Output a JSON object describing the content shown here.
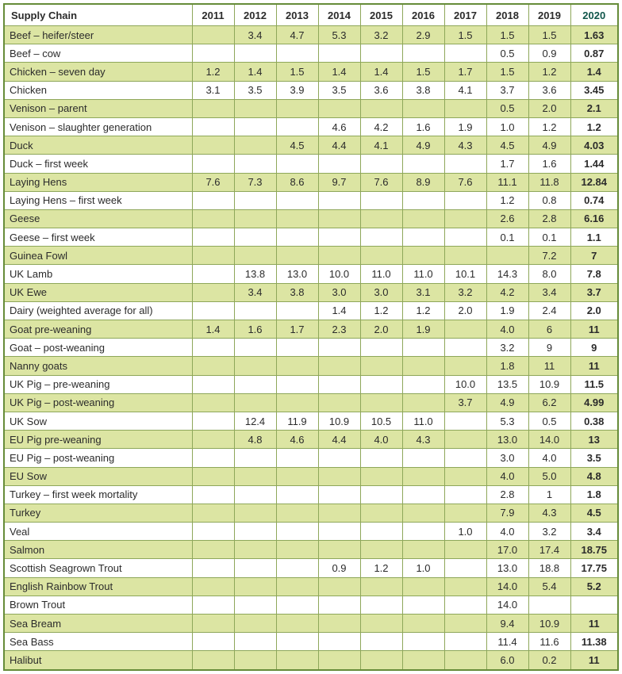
{
  "colors": {
    "header_green": "#54802a",
    "row_band_green": "#dce5a3",
    "grid_green": "#8ea75a",
    "outer_border_green": "#668c39",
    "final_column_teal": "#11564b"
  },
  "table": {
    "header_label": "Supply Chain",
    "years": [
      "2011",
      "2012",
      "2013",
      "2014",
      "2015",
      "2016",
      "2017",
      "2018",
      "2019",
      "2020"
    ],
    "rows": [
      {
        "label": "Beef – heifer/steer",
        "values": [
          "",
          "3.4",
          "4.7",
          "5.3",
          "3.2",
          "2.9",
          "1.5",
          "1.5",
          "1.5",
          "1.63"
        ]
      },
      {
        "label": "Beef – cow",
        "values": [
          "",
          "",
          "",
          "",
          "",
          "",
          "",
          "0.5",
          "0.9",
          "0.87"
        ]
      },
      {
        "label": "Chicken – seven day",
        "values": [
          "1.2",
          "1.4",
          "1.5",
          "1.4",
          "1.4",
          "1.5",
          "1.7",
          "1.5",
          "1.2",
          "1.4"
        ]
      },
      {
        "label": "Chicken",
        "values": [
          "3.1",
          "3.5",
          "3.9",
          "3.5",
          "3.6",
          "3.8",
          "4.1",
          "3.7",
          "3.6",
          "3.45"
        ]
      },
      {
        "label": "Venison – parent",
        "values": [
          "",
          "",
          "",
          "",
          "",
          "",
          "",
          "0.5",
          "2.0",
          "2.1"
        ]
      },
      {
        "label": "Venison – slaughter generation",
        "values": [
          "",
          "",
          "",
          "4.6",
          "4.2",
          "1.6",
          "1.9",
          "1.0",
          "1.2",
          "1.2"
        ]
      },
      {
        "label": "Duck",
        "values": [
          "",
          "",
          "4.5",
          "4.4",
          "4.1",
          "4.9",
          "4.3",
          "4.5",
          "4.9",
          "4.03"
        ]
      },
      {
        "label": "Duck – first week",
        "values": [
          "",
          "",
          "",
          "",
          "",
          "",
          "",
          "1.7",
          "1.6",
          "1.44"
        ]
      },
      {
        "label": "Laying Hens",
        "values": [
          "7.6",
          "7.3",
          "8.6",
          "9.7",
          "7.6",
          "8.9",
          "7.6",
          "11.1",
          "11.8",
          "12.84"
        ]
      },
      {
        "label": "Laying Hens – first week",
        "values": [
          "",
          "",
          "",
          "",
          "",
          "",
          "",
          "1.2",
          "0.8",
          "0.74"
        ]
      },
      {
        "label": "Geese",
        "values": [
          "",
          "",
          "",
          "",
          "",
          "",
          "",
          "2.6",
          "2.8",
          "6.16"
        ]
      },
      {
        "label": "Geese – first week",
        "values": [
          "",
          "",
          "",
          "",
          "",
          "",
          "",
          "0.1",
          "0.1",
          "1.1"
        ]
      },
      {
        "label": "Guinea Fowl",
        "values": [
          "",
          "",
          "",
          "",
          "",
          "",
          "",
          "",
          "7.2",
          "7"
        ]
      },
      {
        "label": "UK Lamb",
        "values": [
          "",
          "13.8",
          "13.0",
          "10.0",
          "11.0",
          "11.0",
          "10.1",
          "14.3",
          "8.0",
          "7.8"
        ]
      },
      {
        "label": "UK Ewe",
        "values": [
          "",
          "3.4",
          "3.8",
          "3.0",
          "3.0",
          "3.1",
          "3.2",
          "4.2",
          "3.4",
          "3.7"
        ]
      },
      {
        "label": "Dairy (weighted average for all)",
        "values": [
          "",
          "",
          "",
          "1.4",
          "1.2",
          "1.2",
          "2.0",
          "1.9",
          "2.4",
          "2.0"
        ]
      },
      {
        "label": "Goat pre-weaning",
        "values": [
          "1.4",
          "1.6",
          "1.7",
          "2.3",
          "2.0",
          "1.9",
          "",
          "4.0",
          "6",
          "11"
        ]
      },
      {
        "label": "Goat – post-weaning",
        "values": [
          "",
          "",
          "",
          "",
          "",
          "",
          "",
          "3.2",
          "9",
          "9"
        ]
      },
      {
        "label": "Nanny goats",
        "values": [
          "",
          "",
          "",
          "",
          "",
          "",
          "",
          "1.8",
          "11",
          "11"
        ]
      },
      {
        "label": "UK Pig – pre-weaning",
        "values": [
          "",
          "",
          "",
          "",
          "",
          "",
          "10.0",
          "13.5",
          "10.9",
          "11.5"
        ]
      },
      {
        "label": "UK Pig – post-weaning",
        "values": [
          "",
          "",
          "",
          "",
          "",
          "",
          "3.7",
          "4.9",
          "6.2",
          "4.99"
        ]
      },
      {
        "label": "UK Sow",
        "values": [
          "",
          "12.4",
          "11.9",
          "10.9",
          "10.5",
          "11.0",
          "",
          "5.3",
          "0.5",
          "0.38"
        ]
      },
      {
        "label": "EU Pig pre-weaning",
        "values": [
          "",
          "4.8",
          "4.6",
          "4.4",
          "4.0",
          "4.3",
          "",
          "13.0",
          "14.0",
          "13"
        ]
      },
      {
        "label": "EU Pig – post-weaning",
        "values": [
          "",
          "",
          "",
          "",
          "",
          "",
          "",
          "3.0",
          "4.0",
          "3.5"
        ]
      },
      {
        "label": "EU Sow",
        "values": [
          "",
          "",
          "",
          "",
          "",
          "",
          "",
          "4.0",
          "5.0",
          "4.8"
        ]
      },
      {
        "label": "Turkey – first week mortality",
        "values": [
          "",
          "",
          "",
          "",
          "",
          "",
          "",
          "2.8",
          "1",
          "1.8"
        ]
      },
      {
        "label": "Turkey",
        "values": [
          "",
          "",
          "",
          "",
          "",
          "",
          "",
          "7.9",
          "4.3",
          "4.5"
        ]
      },
      {
        "label": "Veal",
        "values": [
          "",
          "",
          "",
          "",
          "",
          "",
          "1.0",
          "4.0",
          "3.2",
          "3.4"
        ]
      },
      {
        "label": "Salmon",
        "values": [
          "",
          "",
          "",
          "",
          "",
          "",
          "",
          "17.0",
          "17.4",
          "18.75"
        ]
      },
      {
        "label": "Scottish Seagrown Trout",
        "values": [
          "",
          "",
          "",
          "0.9",
          "1.2",
          "1.0",
          "",
          "13.0",
          "18.8",
          "17.75"
        ]
      },
      {
        "label": "English Rainbow Trout",
        "values": [
          "",
          "",
          "",
          "",
          "",
          "",
          "",
          "14.0",
          "5.4",
          "5.2"
        ]
      },
      {
        "label": "Brown Trout",
        "values": [
          "",
          "",
          "",
          "",
          "",
          "",
          "",
          "14.0",
          "",
          ""
        ]
      },
      {
        "label": "Sea Bream",
        "values": [
          "",
          "",
          "",
          "",
          "",
          "",
          "",
          "9.4",
          "10.9",
          "11"
        ]
      },
      {
        "label": "Sea Bass",
        "values": [
          "",
          "",
          "",
          "",
          "",
          "",
          "",
          "11.4",
          "11.6",
          "11.38"
        ]
      },
      {
        "label": "Halibut",
        "values": [
          "",
          "",
          "",
          "",
          "",
          "",
          "",
          "6.0",
          "0.2",
          "11"
        ]
      }
    ]
  }
}
